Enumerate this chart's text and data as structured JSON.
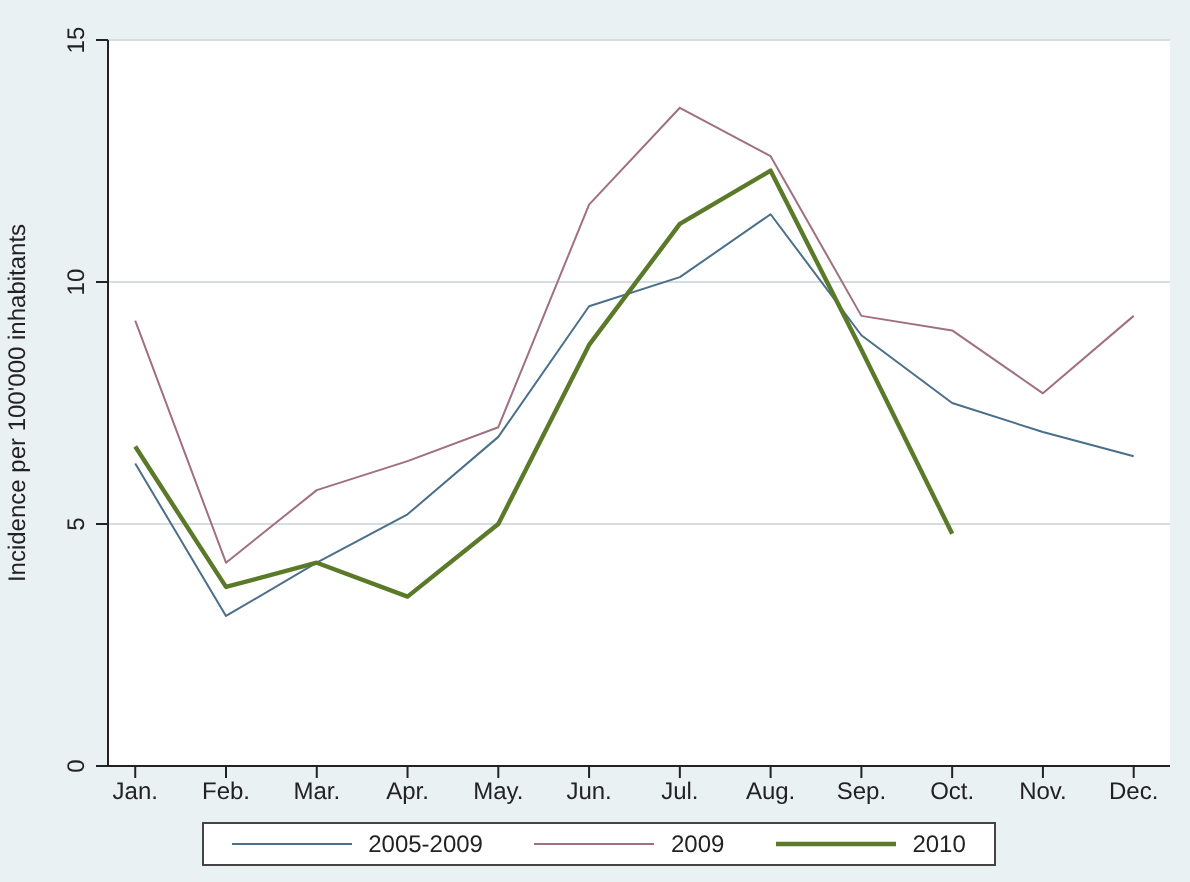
{
  "chart_data": {
    "type": "line",
    "ylabel": "Incidence per 100'000 inhabitants",
    "categories": [
      "Jan.",
      "Feb.",
      "Mar.",
      "Apr.",
      "May.",
      "Jun.",
      "Jul.",
      "Aug.",
      "Sep.",
      "Oct.",
      "Nov.",
      "Dec."
    ],
    "series": [
      {
        "name": "2005-2009",
        "color": "#4a6f8a",
        "values": [
          6.25,
          3.1,
          4.2,
          5.2,
          6.8,
          9.5,
          10.1,
          11.4,
          8.9,
          7.5,
          6.9,
          6.4
        ]
      },
      {
        "name": "2009",
        "color": "#a07080",
        "values": [
          9.2,
          4.2,
          5.7,
          6.3,
          7.0,
          11.6,
          13.6,
          12.6,
          9.3,
          9.0,
          7.7,
          9.3
        ]
      },
      {
        "name": "2010",
        "color": "#5a7a2a",
        "values": [
          6.6,
          3.7,
          4.2,
          3.5,
          5.0,
          8.7,
          11.2,
          12.3,
          8.6,
          4.8,
          null,
          null
        ]
      }
    ],
    "ylim": [
      0,
      15
    ],
    "yticks": [
      0,
      5,
      10,
      15
    ],
    "grid": "y",
    "legend": "bottom",
    "marker": "none",
    "line_style": "solid"
  }
}
